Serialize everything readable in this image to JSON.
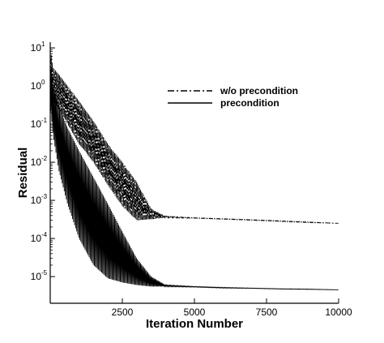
{
  "chart_data": {
    "type": "line",
    "title": "",
    "xlabel": "Iteration Number",
    "ylabel": "Residual",
    "xlim": [
      0,
      10000
    ],
    "ylim_log10": [
      -5.7,
      1.15
    ],
    "yscale": "log",
    "grid": false,
    "legend_position": "top-right",
    "x_ticks": [
      {
        "value": 2500,
        "label": "2500"
      },
      {
        "value": 5000,
        "label": "5000"
      },
      {
        "value": 7500,
        "label": "7500"
      },
      {
        "value": 10000,
        "label": "10000"
      }
    ],
    "y_ticks": [
      {
        "exp": 1,
        "base": "10",
        "sup": "1"
      },
      {
        "exp": 0,
        "base": "10",
        "sup": "0"
      },
      {
        "exp": -1,
        "base": "10",
        "sup": "-1"
      },
      {
        "exp": -2,
        "base": "10",
        "sup": "-2"
      },
      {
        "exp": -3,
        "base": "10",
        "sup": "-3"
      },
      {
        "exp": -4,
        "base": "10",
        "sup": "-4"
      },
      {
        "exp": -5,
        "base": "10",
        "sup": "-5"
      }
    ],
    "series": [
      {
        "name": "w/o precondition",
        "style": "dash-dot",
        "color": "#000000",
        "x": [
          0,
          100,
          300,
          600,
          1000,
          1500,
          2000,
          2500,
          3000,
          3500,
          4000,
          5000,
          6000,
          7000,
          8000,
          9000,
          10000
        ],
        "upper": [
          10,
          3,
          2,
          1,
          0.4,
          0.12,
          0.03,
          0.01,
          0.003,
          0.0006,
          0.00038,
          0.00035,
          0.00033,
          0.00031,
          0.00029,
          0.00027,
          0.00025
        ],
        "lower": [
          0.5,
          0.4,
          0.25,
          0.1,
          0.03,
          0.01,
          0.0025,
          0.0007,
          0.0003,
          0.00032,
          0.00035,
          0.00034,
          0.00032,
          0.0003,
          0.00028,
          0.00026,
          0.00025
        ]
      },
      {
        "name": "precondition",
        "style": "solid",
        "color": "#000000",
        "x": [
          0,
          100,
          300,
          600,
          1000,
          1500,
          2000,
          2500,
          3000,
          3500,
          4000,
          5000,
          6000,
          7000,
          8000,
          9000,
          10000
        ],
        "upper": [
          5,
          1,
          0.3,
          0.08,
          0.02,
          0.004,
          0.0008,
          0.00015,
          3e-05,
          1e-05,
          6e-06,
          5.5e-06,
          5.2e-06,
          5e-06,
          4.8e-06,
          4.7e-06,
          4.5e-06
        ],
        "lower": [
          0.3,
          0.05,
          0.006,
          0.0008,
          0.0001,
          2e-05,
          9e-06,
          7e-06,
          6e-06,
          5.5e-06,
          5.5e-06,
          5.3e-06,
          5e-06,
          4.9e-06,
          4.7e-06,
          4.6e-06,
          4.5e-06
        ]
      }
    ]
  }
}
